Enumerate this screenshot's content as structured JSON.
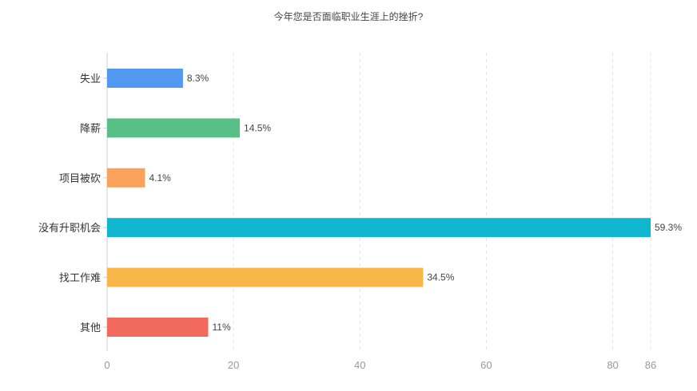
{
  "chart_data": {
    "type": "bar",
    "orientation": "horizontal",
    "title": "今年您是否面临职业生涯上的挫折?",
    "categories": [
      "失业",
      "降薪",
      "项目被砍",
      "没有升职机会",
      "找工作难",
      "其他"
    ],
    "values": [
      12,
      21,
      6,
      86,
      50,
      16
    ],
    "data_labels": [
      "8.3%",
      "14.5%",
      "4.1%",
      "59.3%",
      "34.5%",
      "11%"
    ],
    "colors": [
      "#5098f0",
      "#58bf86",
      "#f8a25c",
      "#10b6ce",
      "#f8b648",
      "#f26a5e"
    ],
    "x_ticks": [
      0,
      20,
      40,
      60,
      80,
      86
    ],
    "xlim": [
      0,
      86
    ],
    "grid": "vertical dashed",
    "xlabel": "",
    "ylabel": ""
  }
}
